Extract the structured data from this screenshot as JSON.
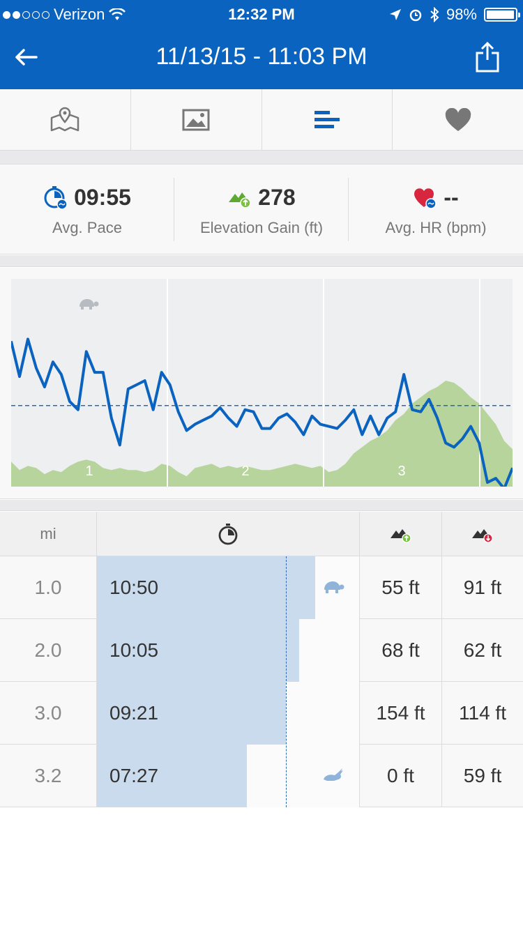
{
  "status": {
    "carrier": "Verizon",
    "time": "12:32 PM",
    "battery": "98%",
    "signal_filled": 2,
    "signal_total": 5
  },
  "nav": {
    "title": "11/13/15 - 11:03 PM",
    "back_icon": "back-arrow-icon",
    "share_icon": "share-icon"
  },
  "tabs": [
    {
      "icon": "map-icon",
      "selected": false
    },
    {
      "icon": "photo-icon",
      "selected": false
    },
    {
      "icon": "splits-bars-icon",
      "selected": true
    },
    {
      "icon": "heart-icon",
      "selected": false
    }
  ],
  "stats": {
    "pace": {
      "value": "09:55",
      "label": "Avg. Pace"
    },
    "elevation": {
      "value": "278",
      "label": "Elevation Gain (ft)"
    },
    "hr": {
      "value": "--",
      "label": "Avg. HR (bpm)"
    }
  },
  "chart_data": {
    "type": "area",
    "mile_markers": [
      "1",
      "2",
      "3"
    ],
    "pace_series": [
      30,
      47,
      29,
      43,
      52,
      40,
      46,
      59,
      63,
      35,
      45,
      45,
      67,
      80,
      53,
      51,
      49,
      63,
      45,
      51,
      64,
      73,
      70,
      68,
      66,
      62,
      67,
      71,
      63,
      64,
      72,
      72,
      67,
      65,
      69,
      75,
      66,
      70,
      71,
      72,
      68,
      63,
      75,
      66,
      75,
      67,
      64,
      46,
      63,
      64,
      58,
      67,
      79,
      81,
      77,
      71,
      79,
      98,
      96,
      101,
      91
    ],
    "pace_avg": 61,
    "elevation_series": [
      12,
      8,
      10,
      9,
      6,
      8,
      7,
      10,
      12,
      13,
      12,
      9,
      8,
      9,
      8,
      8,
      7,
      8,
      11,
      10,
      7,
      5,
      9,
      10,
      11,
      9,
      10,
      9,
      10,
      9,
      8,
      8,
      9,
      10,
      11,
      10,
      9,
      10,
      7,
      8,
      11,
      16,
      19,
      22,
      24,
      27,
      32,
      35,
      40,
      43,
      46,
      48,
      51,
      50,
      47,
      43,
      40,
      35,
      30,
      22,
      18
    ],
    "colors": {
      "pace_line": "#0a63bf",
      "pace_avg": "#2a68b0",
      "elevation_fill": "#b6d49b",
      "icon": "#b7bcc2"
    }
  },
  "table": {
    "headers": {
      "mi": "mi",
      "pace_icon": "stopwatch-icon",
      "gain_icon": "elevation-up-icon",
      "loss_icon": "elevation-down-icon"
    },
    "avg_pace_fraction": 0.72,
    "rows": [
      {
        "mi": "1.0",
        "pace": "10:50",
        "pace_fraction": 0.83,
        "badge": "turtle-icon",
        "gain": "55 ft",
        "loss": "91 ft"
      },
      {
        "mi": "2.0",
        "pace": "10:05",
        "pace_fraction": 0.77,
        "badge": "",
        "gain": "68 ft",
        "loss": "62 ft"
      },
      {
        "mi": "3.0",
        "pace": "09:21",
        "pace_fraction": 0.72,
        "badge": "",
        "gain": "154 ft",
        "loss": "114 ft"
      },
      {
        "mi": "3.2",
        "pace": "07:27",
        "pace_fraction": 0.57,
        "badge": "rabbit-icon",
        "gain": "0 ft",
        "loss": "59 ft"
      }
    ]
  }
}
